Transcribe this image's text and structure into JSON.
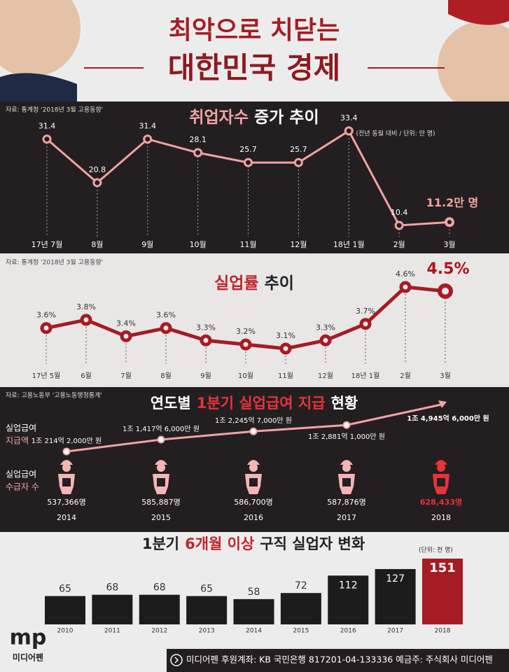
{
  "header": {
    "title_lines": [
      "최악으로 치닫는",
      "대한민국 경제"
    ]
  },
  "chart_data": [
    {
      "type": "line",
      "source": "자료: 통계청 '2018년 3월 고용동향'",
      "title": [
        {
          "text": "취업자수",
          "color": "#f2a3a3"
        },
        {
          "text": "증가 추이",
          "color": "#ffffff"
        }
      ],
      "subtitle": "(전년 동월 대비 / 단위: 만 명)",
      "categories": [
        "17년 7월",
        "8월",
        "9월",
        "10월",
        "11월",
        "12월",
        "18년 1월",
        "2월",
        "3월"
      ],
      "values": [
        31.4,
        20.8,
        31.4,
        28.1,
        25.7,
        25.7,
        33.4,
        10.4,
        11.2
      ],
      "value_labels": [
        "31.4",
        "20.8",
        "31.4",
        "28.1",
        "25.7",
        "25.7",
        "33.4",
        "10.4",
        "11.2만 명"
      ],
      "color": "#f0a3a3",
      "label_color": "#ffffff",
      "highlight_color": "#f5a3a3"
    },
    {
      "type": "line",
      "source": "자료: 통계청 '2018년 3월 고용동향'",
      "title": [
        {
          "text": "실업률",
          "color": "#c0242c"
        },
        {
          "text": "추이",
          "color": "#222222"
        }
      ],
      "categories": [
        "17년 5월",
        "6월",
        "7월",
        "8월",
        "9월",
        "10월",
        "11월",
        "12월",
        "18년 1월",
        "2월",
        "3월"
      ],
      "values": [
        3.6,
        3.8,
        3.4,
        3.6,
        3.3,
        3.2,
        3.1,
        3.3,
        3.7,
        4.6,
        4.5
      ],
      "value_labels": [
        "3.6%",
        "3.8%",
        "3.4%",
        "3.6%",
        "3.3%",
        "3.2%",
        "3.1%",
        "3.3%",
        "3.7%",
        "4.6%",
        "4.5%"
      ],
      "color": "#a51c24",
      "label_color": "#333333",
      "highlight_color": "#b0131c"
    },
    {
      "type": "pictogram",
      "source": "자료: 고용노동부 '고용노동행정통계'",
      "title": [
        {
          "text": "연도별",
          "color": "#ffffff"
        },
        {
          "text": "1분기 실업급여 지급",
          "color": "#e8333a"
        },
        {
          "text": "현황",
          "color": "#ffffff"
        }
      ],
      "categories": [
        "2014",
        "2015",
        "2016",
        "2017",
        "2018"
      ],
      "series": [
        {
          "label": [
            "실업급여",
            "지급액"
          ],
          "values": [
            10214.2,
            11417.6,
            12245.7,
            12881.1,
            14945.6
          ],
          "value_labels": [
            "1조 214억 2,000만 원",
            "1조 1,417억 6,000만 원",
            "1조 2,245억 7,000만 원",
            "1조 2,881억 1,000만 원",
            "1조 4,945억 6,000만 원"
          ],
          "color": "#f0a3a3"
        },
        {
          "label": [
            "실업급여",
            "수급자 수"
          ],
          "values": [
            537366,
            585887,
            586700,
            587876,
            628433
          ],
          "value_labels": [
            "537,366명",
            "585,887명",
            "586,700명",
            "587,876명",
            "628,433명"
          ],
          "colors": [
            "#f3b5b5",
            "#f3b5b5",
            "#f3b5b5",
            "#f3b5b5",
            "#e8333a"
          ]
        }
      ]
    },
    {
      "type": "bar",
      "title": [
        {
          "text": "1분기",
          "color": "#222222"
        },
        {
          "text": "6개월 이상",
          "color": "#c0242c"
        },
        {
          "text": "구직 실업자 변화",
          "color": "#222222"
        }
      ],
      "subtitle": "(단위: 천 명)",
      "categories": [
        "2010",
        "2011",
        "2012",
        "2013",
        "2014",
        "2015",
        "2016",
        "2017",
        "2018"
      ],
      "values": [
        65,
        68,
        68,
        65,
        58,
        72,
        112,
        127,
        151
      ],
      "colors": [
        "#1c1c1c",
        "#1c1c1c",
        "#1c1c1c",
        "#1c1c1c",
        "#1c1c1c",
        "#1c1c1c",
        "#1c1c1c",
        "#1c1c1c",
        "#a51c24"
      ]
    }
  ],
  "footer": {
    "account": "미디어펜 후원계좌: KB 국민은행 817201-04-133336 예금주: 주식회사 미디어펜",
    "logo": "mp",
    "brand": "미디어펜"
  }
}
